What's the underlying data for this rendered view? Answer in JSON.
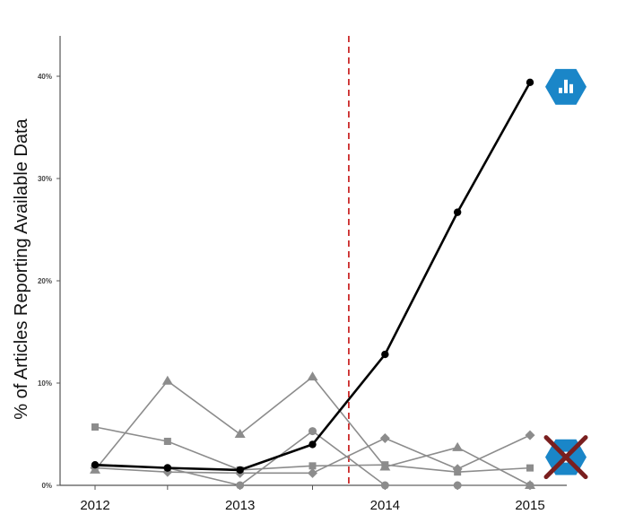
{
  "chart_data": {
    "type": "line",
    "ylabel": "% of Articles Reporting Available Data",
    "x": [
      2012,
      2012.5,
      2013,
      2013.5,
      2014,
      2014.5,
      2015
    ],
    "x_tick_labels": [
      "2012",
      "2013",
      "2014",
      "2015"
    ],
    "x_tick_values": [
      2012,
      2013,
      2014,
      2015
    ],
    "xlim": [
      2011.7,
      2015.3
    ],
    "y_tick_labels": [
      "0%",
      "10%",
      "20%",
      "30%",
      "40%"
    ],
    "y_tick_values": [
      0,
      10,
      20,
      30,
      40
    ],
    "ylim": [
      0,
      45
    ],
    "reference_line": {
      "x": 2013.75,
      "style": "dashed",
      "color": "#cc2b2b"
    },
    "series": [
      {
        "marker": "circle",
        "color": "#000000",
        "emphasis": true,
        "values": [
          2.0,
          1.7,
          1.5,
          4.0,
          12.8,
          26.7,
          39.4
        ]
      },
      {
        "marker": "square",
        "color": "#8c8c8c",
        "values": [
          5.7,
          4.3,
          1.5,
          1.9,
          2.0,
          1.3,
          1.7
        ]
      },
      {
        "marker": "triangle",
        "color": "#8c8c8c",
        "values": [
          1.5,
          10.2,
          5.0,
          10.6,
          1.8,
          3.7,
          0.0
        ]
      },
      {
        "marker": "diamond",
        "color": "#8c8c8c",
        "values": [
          1.7,
          1.3,
          1.2,
          1.2,
          4.6,
          1.6,
          4.9
        ]
      },
      {
        "marker": "circle",
        "color": "#8c8c8c",
        "values": [
          1.9,
          1.7,
          0.0,
          5.3,
          0.0,
          0.0,
          0.0
        ]
      }
    ],
    "badges": [
      {
        "icon": "bar-chart-badge-icon",
        "color": "#1a86c8",
        "anchor_series": 0,
        "crossed": false
      },
      {
        "icon": "crossed-out-badge-icon",
        "color": "#1a86c8",
        "anchor_series": 1,
        "crossed": true,
        "cross_color": "#7a1f1f"
      }
    ],
    "grid": false
  }
}
